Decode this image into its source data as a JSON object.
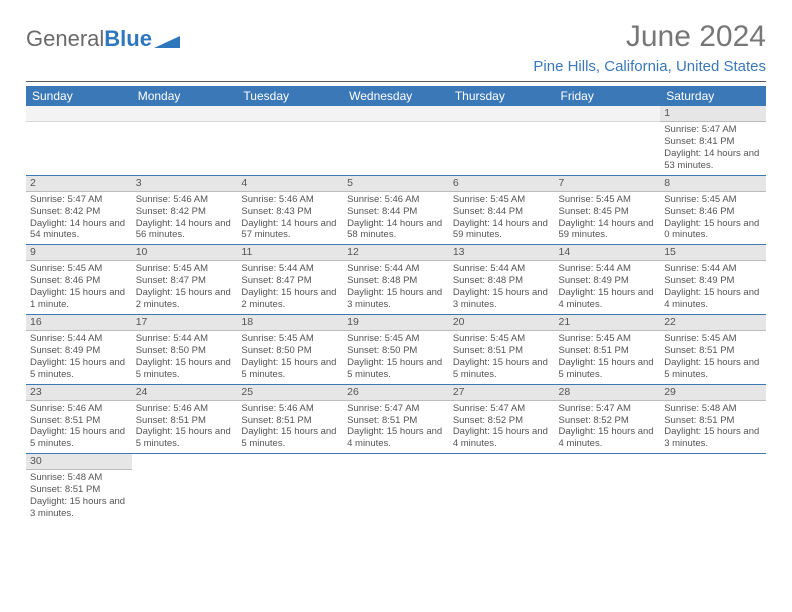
{
  "brand": {
    "part1": "General",
    "part2": "Blue"
  },
  "header": {
    "month_year": "June 2024",
    "location": "Pine Hills, California, United States"
  },
  "colors": {
    "accent": "#3b78b8",
    "header_row_bg": "#3b78b8",
    "header_row_text": "#ffffff",
    "daynum_bg": "#e6e6e6",
    "row_divider": "#3b78b8",
    "body_text": "#555555",
    "page_bg": "#ffffff"
  },
  "weekdays": [
    "Sunday",
    "Monday",
    "Tuesday",
    "Wednesday",
    "Thursday",
    "Friday",
    "Saturday"
  ],
  "layout": {
    "first_weekday_index": 6,
    "days_in_month": 30
  },
  "days": {
    "1": {
      "sunrise": "5:47 AM",
      "sunset": "8:41 PM",
      "daylight": "14 hours and 53 minutes."
    },
    "2": {
      "sunrise": "5:47 AM",
      "sunset": "8:42 PM",
      "daylight": "14 hours and 54 minutes."
    },
    "3": {
      "sunrise": "5:46 AM",
      "sunset": "8:42 PM",
      "daylight": "14 hours and 56 minutes."
    },
    "4": {
      "sunrise": "5:46 AM",
      "sunset": "8:43 PM",
      "daylight": "14 hours and 57 minutes."
    },
    "5": {
      "sunrise": "5:46 AM",
      "sunset": "8:44 PM",
      "daylight": "14 hours and 58 minutes."
    },
    "6": {
      "sunrise": "5:45 AM",
      "sunset": "8:44 PM",
      "daylight": "14 hours and 59 minutes."
    },
    "7": {
      "sunrise": "5:45 AM",
      "sunset": "8:45 PM",
      "daylight": "14 hours and 59 minutes."
    },
    "8": {
      "sunrise": "5:45 AM",
      "sunset": "8:46 PM",
      "daylight": "15 hours and 0 minutes."
    },
    "9": {
      "sunrise": "5:45 AM",
      "sunset": "8:46 PM",
      "daylight": "15 hours and 1 minute."
    },
    "10": {
      "sunrise": "5:45 AM",
      "sunset": "8:47 PM",
      "daylight": "15 hours and 2 minutes."
    },
    "11": {
      "sunrise": "5:44 AM",
      "sunset": "8:47 PM",
      "daylight": "15 hours and 2 minutes."
    },
    "12": {
      "sunrise": "5:44 AM",
      "sunset": "8:48 PM",
      "daylight": "15 hours and 3 minutes."
    },
    "13": {
      "sunrise": "5:44 AM",
      "sunset": "8:48 PM",
      "daylight": "15 hours and 3 minutes."
    },
    "14": {
      "sunrise": "5:44 AM",
      "sunset": "8:49 PM",
      "daylight": "15 hours and 4 minutes."
    },
    "15": {
      "sunrise": "5:44 AM",
      "sunset": "8:49 PM",
      "daylight": "15 hours and 4 minutes."
    },
    "16": {
      "sunrise": "5:44 AM",
      "sunset": "8:49 PM",
      "daylight": "15 hours and 5 minutes."
    },
    "17": {
      "sunrise": "5:44 AM",
      "sunset": "8:50 PM",
      "daylight": "15 hours and 5 minutes."
    },
    "18": {
      "sunrise": "5:45 AM",
      "sunset": "8:50 PM",
      "daylight": "15 hours and 5 minutes."
    },
    "19": {
      "sunrise": "5:45 AM",
      "sunset": "8:50 PM",
      "daylight": "15 hours and 5 minutes."
    },
    "20": {
      "sunrise": "5:45 AM",
      "sunset": "8:51 PM",
      "daylight": "15 hours and 5 minutes."
    },
    "21": {
      "sunrise": "5:45 AM",
      "sunset": "8:51 PM",
      "daylight": "15 hours and 5 minutes."
    },
    "22": {
      "sunrise": "5:45 AM",
      "sunset": "8:51 PM",
      "daylight": "15 hours and 5 minutes."
    },
    "23": {
      "sunrise": "5:46 AM",
      "sunset": "8:51 PM",
      "daylight": "15 hours and 5 minutes."
    },
    "24": {
      "sunrise": "5:46 AM",
      "sunset": "8:51 PM",
      "daylight": "15 hours and 5 minutes."
    },
    "25": {
      "sunrise": "5:46 AM",
      "sunset": "8:51 PM",
      "daylight": "15 hours and 5 minutes."
    },
    "26": {
      "sunrise": "5:47 AM",
      "sunset": "8:51 PM",
      "daylight": "15 hours and 4 minutes."
    },
    "27": {
      "sunrise": "5:47 AM",
      "sunset": "8:52 PM",
      "daylight": "15 hours and 4 minutes."
    },
    "28": {
      "sunrise": "5:47 AM",
      "sunset": "8:52 PM",
      "daylight": "15 hours and 4 minutes."
    },
    "29": {
      "sunrise": "5:48 AM",
      "sunset": "8:51 PM",
      "daylight": "15 hours and 3 minutes."
    },
    "30": {
      "sunrise": "5:48 AM",
      "sunset": "8:51 PM",
      "daylight": "15 hours and 3 minutes."
    }
  },
  "labels": {
    "sunrise": "Sunrise:",
    "sunset": "Sunset:",
    "daylight": "Daylight:"
  }
}
